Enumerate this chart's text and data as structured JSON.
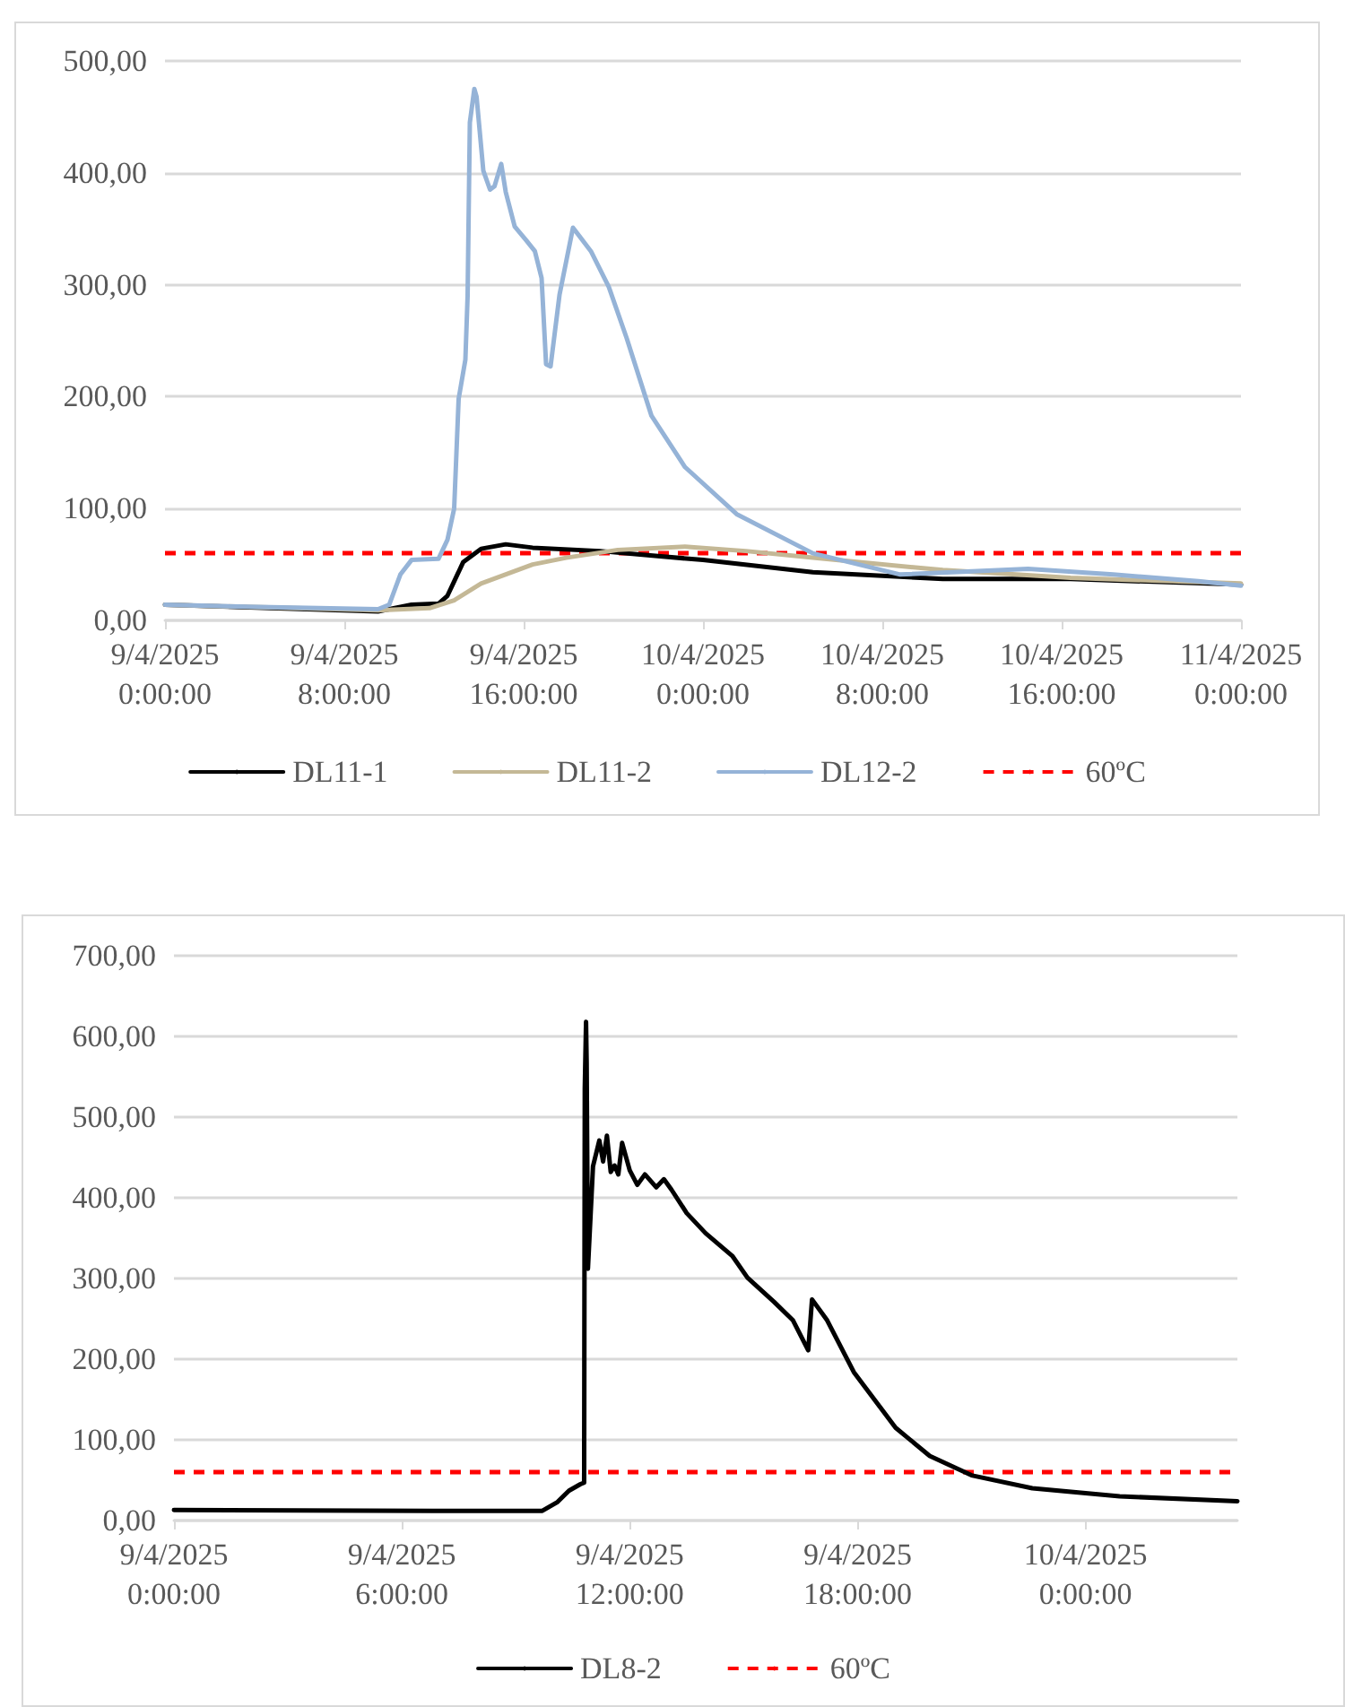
{
  "chart_data": [
    {
      "type": "line",
      "legend": "bottom",
      "grid": "y",
      "xlim": [
        "2025-04-09T00:00",
        "2025-04-11T00:00"
      ],
      "xticks": [
        {
          "value": "2025-04-09T00:00",
          "label": "9/4/2025\n0:00:00"
        },
        {
          "value": "2025-04-09T08:00",
          "label": "9/4/2025\n8:00:00"
        },
        {
          "value": "2025-04-09T16:00",
          "label": "9/4/2025\n16:00:00"
        },
        {
          "value": "2025-04-10T00:00",
          "label": "10/4/2025\n0:00:00"
        },
        {
          "value": "2025-04-10T08:00",
          "label": "10/4/2025\n8:00:00"
        },
        {
          "value": "2025-04-10T16:00",
          "label": "10/4/2025\n16:00:00"
        },
        {
          "value": "2025-04-11T00:00",
          "label": "11/4/2025\n0:00:00"
        }
      ],
      "ylim": [
        0,
        500
      ],
      "yticks": [
        {
          "value": 0,
          "label": "0,00"
        },
        {
          "value": 100,
          "label": "100,00"
        },
        {
          "value": 200,
          "label": "200,00"
        },
        {
          "value": 300,
          "label": "300,00"
        },
        {
          "value": 400,
          "label": "400,00"
        },
        {
          "value": 500,
          "label": "500,00"
        }
      ],
      "series": [
        {
          "name": "DL11-1",
          "color": "#000000",
          "x": [
            "2025-04-09T00:00",
            "2025-04-09T09:30",
            "2025-04-09T11:00",
            "2025-04-09T12:12",
            "2025-04-09T12:36",
            "2025-04-09T13:18",
            "2025-04-09T14:06",
            "2025-04-09T15:12",
            "2025-04-09T16:24",
            "2025-04-09T19:24",
            "2025-04-10T00:00",
            "2025-04-10T04:54",
            "2025-04-10T10:42",
            "2025-04-10T16:24",
            "2025-04-11T00:00"
          ],
          "values": [
            14,
            8,
            14,
            15,
            22,
            52,
            64,
            68,
            65,
            62,
            54,
            43,
            37,
            37,
            32
          ]
        },
        {
          "name": "DL11-2",
          "color": "#c4b896",
          "x": [
            "2025-04-09T00:00",
            "2025-04-09T09:30",
            "2025-04-09T11:48",
            "2025-04-09T12:54",
            "2025-04-09T14:06",
            "2025-04-09T16:24",
            "2025-04-09T17:54",
            "2025-04-09T20:12",
            "2025-04-09T23:12",
            "2025-04-10T01:54",
            "2025-04-10T04:54",
            "2025-04-10T10:42",
            "2025-04-10T16:24",
            "2025-04-11T00:00"
          ],
          "values": [
            14,
            9,
            11,
            18,
            33,
            50,
            56,
            63,
            66,
            62,
            56,
            45,
            38,
            33
          ]
        },
        {
          "name": "DL12-2",
          "color": "#95b3d7",
          "x": [
            "2025-04-09T00:00",
            "2025-04-09T04:12",
            "2025-04-09T09:30",
            "2025-04-09T10:00",
            "2025-04-09T10:30",
            "2025-04-09T11:00",
            "2025-04-09T12:12",
            "2025-04-09T12:36",
            "2025-04-09T12:54",
            "2025-04-09T13:06",
            "2025-04-09T13:24",
            "2025-04-09T13:30",
            "2025-04-09T13:36",
            "2025-04-09T13:48",
            "2025-04-09T13:54",
            "2025-04-09T14:12",
            "2025-04-09T14:30",
            "2025-04-09T14:42",
            "2025-04-09T15:00",
            "2025-04-09T15:12",
            "2025-04-09T15:36",
            "2025-04-09T16:06",
            "2025-04-09T16:30",
            "2025-04-09T16:48",
            "2025-04-09T17:00",
            "2025-04-09T17:12",
            "2025-04-09T17:36",
            "2025-04-09T18:12",
            "2025-04-09T19:00",
            "2025-04-09T19:48",
            "2025-04-09T20:36",
            "2025-04-09T21:42",
            "2025-04-09T23:12",
            "2025-04-10T01:30",
            "2025-04-10T04:54",
            "2025-04-10T08:48",
            "2025-04-10T14:30",
            "2025-04-10T18:18",
            "2025-04-10T22:06",
            "2025-04-11T00:00"
          ],
          "values": [
            14,
            12,
            10,
            14,
            41,
            54,
            55,
            72,
            100,
            198,
            233,
            290,
            445,
            475,
            468,
            402,
            385,
            388,
            408,
            383,
            352,
            340,
            330,
            306,
            229,
            227,
            291,
            351,
            330,
            298,
            252,
            183,
            137,
            95,
            60,
            41,
            46,
            41,
            35,
            31
          ]
        }
      ],
      "ref_lines": [
        {
          "axis": "y",
          "value": 60,
          "label": "60ºC",
          "color": "#ff0000",
          "line_style": "dashed"
        }
      ]
    },
    {
      "type": "line",
      "legend": "bottom",
      "grid": "y",
      "xlim": [
        "2025-04-09T00:00",
        "2025-04-10T04:00"
      ],
      "xticks": [
        {
          "value": "2025-04-09T00:00",
          "label": "9/4/2025\n0:00:00"
        },
        {
          "value": "2025-04-09T06:00",
          "label": "9/4/2025\n6:00:00"
        },
        {
          "value": "2025-04-09T12:00",
          "label": "9/4/2025\n12:00:00"
        },
        {
          "value": "2025-04-09T18:00",
          "label": "9/4/2025\n18:00:00"
        },
        {
          "value": "2025-04-10T00:00",
          "label": "10/4/2025\n0:00:00"
        }
      ],
      "ylim": [
        0,
        700
      ],
      "yticks": [
        {
          "value": 0,
          "label": "0,00"
        },
        {
          "value": 100,
          "label": "100,00"
        },
        {
          "value": 200,
          "label": "200,00"
        },
        {
          "value": 300,
          "label": "300,00"
        },
        {
          "value": 400,
          "label": "400,00"
        },
        {
          "value": 500,
          "label": "500,00"
        },
        {
          "value": 600,
          "label": "600,00"
        },
        {
          "value": 700,
          "label": "700,00"
        }
      ],
      "series": [
        {
          "name": "DL8-2",
          "color": "#000000",
          "x": [
            "2025-04-09T00:00",
            "2025-04-09T06:48",
            "2025-04-09T09:42",
            "2025-04-09T10:06",
            "2025-04-09T10:24",
            "2025-04-09T10:42",
            "2025-04-09T10:48",
            "2025-04-09T10:49",
            "2025-04-09T10:51",
            "2025-04-09T10:52",
            "2025-04-09T10:54",
            "2025-04-09T11:02",
            "2025-04-09T11:12",
            "2025-04-09T11:18",
            "2025-04-09T11:24",
            "2025-04-09T11:30",
            "2025-04-09T11:36",
            "2025-04-09T11:42",
            "2025-04-09T11:48",
            "2025-04-09T12:00",
            "2025-04-09T12:12",
            "2025-04-09T12:24",
            "2025-04-09T12:42",
            "2025-04-09T12:54",
            "2025-04-09T13:06",
            "2025-04-09T13:30",
            "2025-04-09T14:00",
            "2025-04-09T14:42",
            "2025-04-09T15:06",
            "2025-04-09T15:48",
            "2025-04-09T16:18",
            "2025-04-09T16:42",
            "2025-04-09T16:48",
            "2025-04-09T17:12",
            "2025-04-09T17:54",
            "2025-04-09T19:00",
            "2025-04-09T19:54",
            "2025-04-09T21:00",
            "2025-04-09T22:36",
            "2025-04-10T00:54",
            "2025-04-10T04:00"
          ],
          "values": [
            13,
            12,
            12,
            23,
            37,
            45,
            47,
            535,
            618,
            567,
            312,
            439,
            471,
            445,
            477,
            432,
            440,
            429,
            468,
            434,
            416,
            429,
            413,
            423,
            410,
            381,
            356,
            328,
            301,
            271,
            248,
            211,
            274,
            248,
            184,
            115,
            80,
            56,
            40,
            30,
            24
          ]
        }
      ],
      "ref_lines": [
        {
          "axis": "y",
          "value": 60,
          "label": "60ºC",
          "color": "#ff0000",
          "line_style": "dashed"
        }
      ]
    }
  ]
}
